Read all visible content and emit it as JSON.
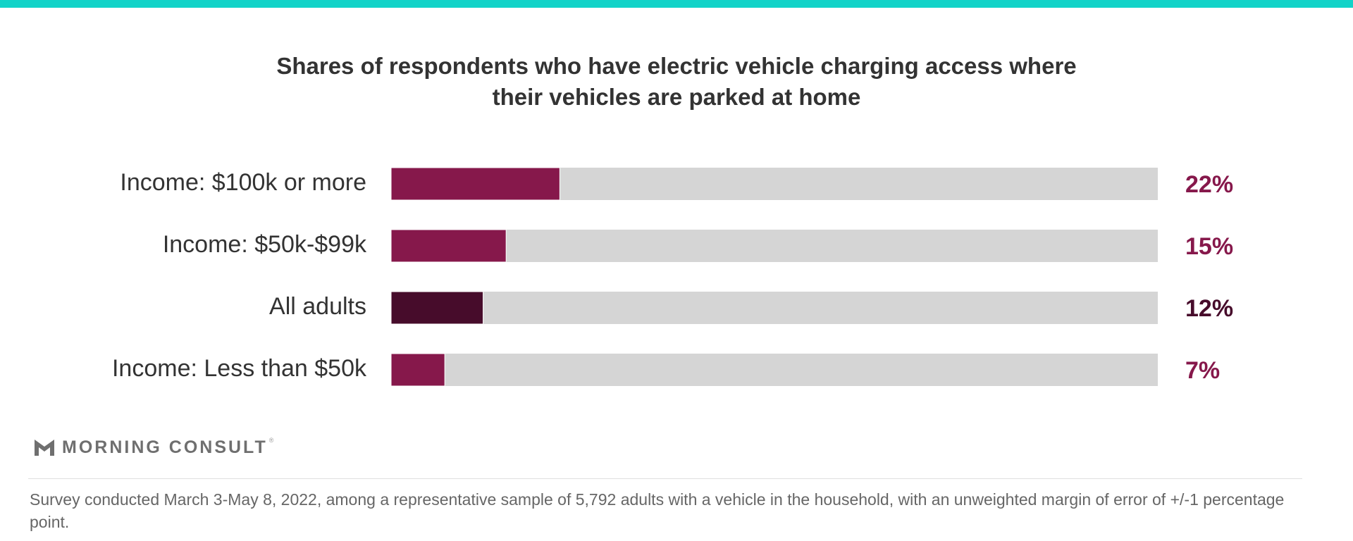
{
  "colors": {
    "accent_bar": "#12d3c8",
    "highlight": "#86184b",
    "all_adults": "#470c2b",
    "track": "#d5d5d5"
  },
  "chart_data": {
    "type": "bar",
    "orientation": "horizontal",
    "title_lines": [
      "Shares of respondents who have electric vehicle charging access where",
      "their vehicles are parked at home"
    ],
    "categories": [
      "Income: $100k or more",
      "Income: $50k-$99k",
      "All adults",
      "Income: Less than $50k"
    ],
    "values": [
      22,
      15,
      12,
      7
    ],
    "value_labels": [
      "22%",
      "15%",
      "12%",
      "7%"
    ],
    "highlight_category": "All adults",
    "xlim": [
      0,
      100
    ],
    "unit": "%",
    "grid": false,
    "legend": "none"
  },
  "brand": {
    "logo_icon": "morning-consult-m-icon",
    "name": "MORNING CONSULT",
    "mark": "®"
  },
  "footnote": "Survey conducted March 3-May 8, 2022, among a representative sample of 5,792 adults with a vehicle in the household, with an unweighted margin of error of +/-1 percentage point."
}
